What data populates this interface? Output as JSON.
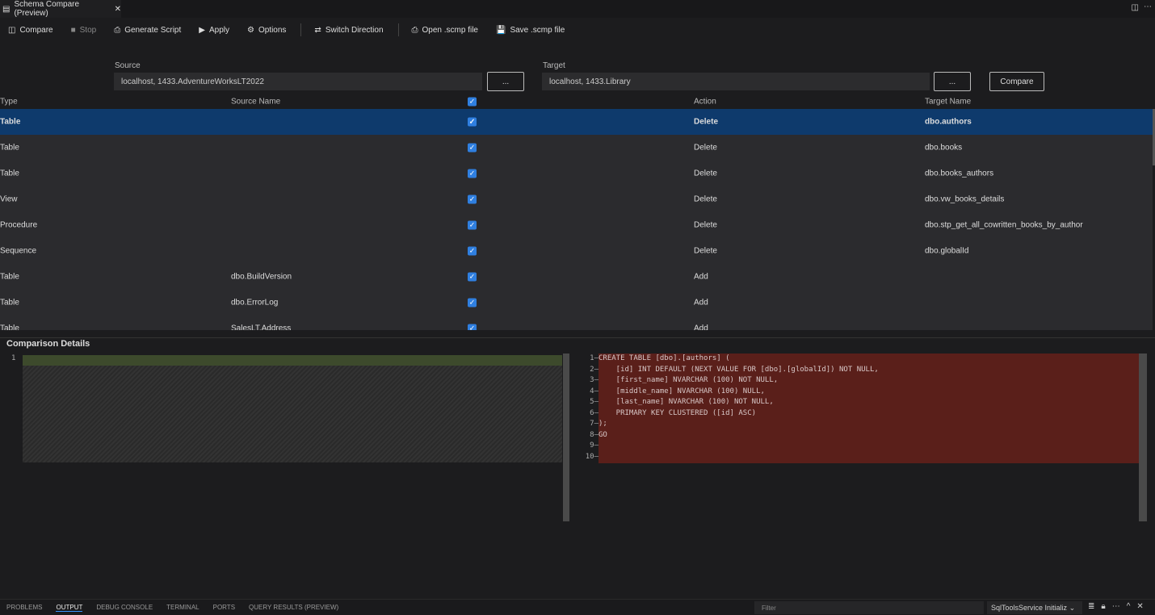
{
  "tab": {
    "title": "Schema Compare (Preview)"
  },
  "toolbar": {
    "compare": "Compare",
    "stop": "Stop",
    "generate_script": "Generate Script",
    "apply": "Apply",
    "options": "Options",
    "switch_direction": "Switch Direction",
    "open_scmp": "Open .scmp file",
    "save_scmp": "Save .scmp file"
  },
  "source": {
    "label": "Source",
    "value": "localhost, 1433.AdventureWorksLT2022",
    "browse": "..."
  },
  "target": {
    "label": "Target",
    "value": "localhost, 1433.Library",
    "browse": "...",
    "compare": "Compare"
  },
  "grid": {
    "headers": {
      "type": "Type",
      "source_name": "Source Name",
      "action": "Action",
      "target_name": "Target Name"
    },
    "rows": [
      {
        "type": "Table",
        "source": "",
        "action": "Delete",
        "target": "dbo.authors",
        "selected": true
      },
      {
        "type": "Table",
        "source": "",
        "action": "Delete",
        "target": "dbo.books"
      },
      {
        "type": "Table",
        "source": "",
        "action": "Delete",
        "target": "dbo.books_authors"
      },
      {
        "type": "View",
        "source": "",
        "action": "Delete",
        "target": "dbo.vw_books_details"
      },
      {
        "type": "Procedure",
        "source": "",
        "action": "Delete",
        "target": "dbo.stp_get_all_cowritten_books_by_author"
      },
      {
        "type": "Sequence",
        "source": "",
        "action": "Delete",
        "target": "dbo.globalId"
      },
      {
        "type": "Table",
        "source": "dbo.BuildVersion",
        "action": "Add",
        "target": ""
      },
      {
        "type": "Table",
        "source": "dbo.ErrorLog",
        "action": "Add",
        "target": ""
      },
      {
        "type": "Table",
        "source": "SalesLT.Address",
        "action": "Add",
        "target": ""
      }
    ]
  },
  "details": {
    "title": "Comparison Details",
    "left_line": "1",
    "right_lines": [
      "CREATE TABLE [dbo].[authors] (",
      "    [id] INT DEFAULT (NEXT VALUE FOR [dbo].[globalId]) NOT NULL,",
      "    [first_name] NVARCHAR (100) NOT NULL,",
      "    [middle_name] NVARCHAR (100) NULL,",
      "    [last_name] NVARCHAR (100) NOT NULL,",
      "    PRIMARY KEY CLUSTERED ([id] ASC)",
      ");",
      "GO",
      "",
      ""
    ]
  },
  "panel": {
    "tabs": [
      "PROBLEMS",
      "OUTPUT",
      "DEBUG CONSOLE",
      "TERMINAL",
      "PORTS",
      "QUERY RESULTS (PREVIEW)"
    ],
    "active": "OUTPUT",
    "filter_placeholder": "Filter",
    "channel": "SqlToolsService Initializ"
  }
}
